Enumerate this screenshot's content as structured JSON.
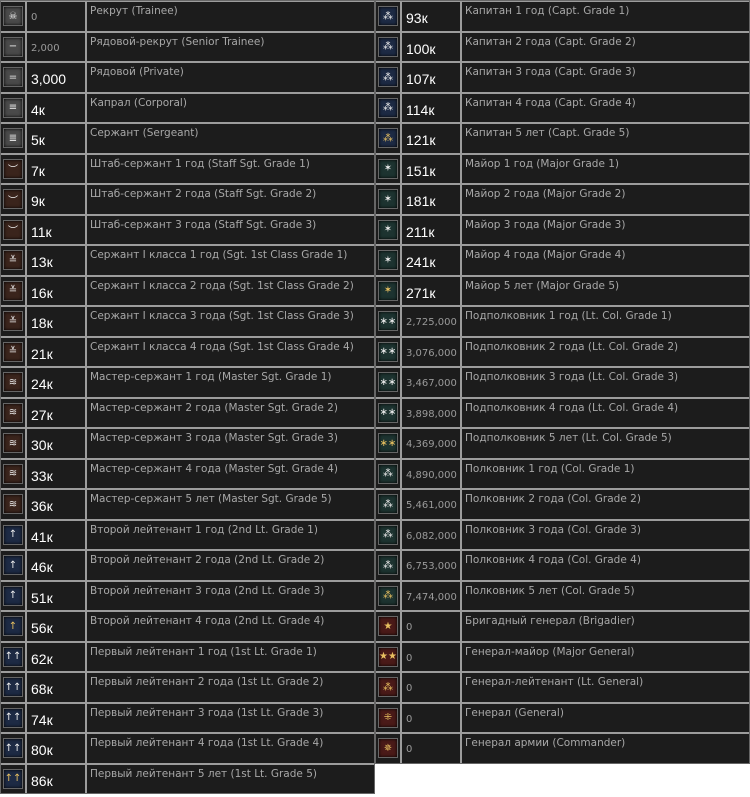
{
  "icon_colors": {
    "gray": "#4a4a4a",
    "brown": "#3a241c",
    "blue": "#1d2a44",
    "green": "#1d3330",
    "red": "#4a1a18"
  },
  "left": [
    {
      "icon": "skull-icon",
      "glyph": "☠",
      "bg": "gray",
      "value": "0",
      "style": "dim",
      "name": "Рекрут (Trainee)"
    },
    {
      "icon": "one-bar-icon",
      "glyph": "−",
      "bg": "gray",
      "value": "2,000",
      "style": "dim",
      "name": "Рядовой-рекрут (Senior Trainee)"
    },
    {
      "icon": "two-bars-icon",
      "glyph": "=",
      "bg": "gray",
      "value": "3,000",
      "style": "bright",
      "name": "Рядовой (Private)"
    },
    {
      "icon": "three-bars-icon",
      "glyph": "≡",
      "bg": "gray",
      "value": "4к",
      "style": "bright",
      "name": "Капрал (Corporal)"
    },
    {
      "icon": "four-bars-icon",
      "glyph": "≣",
      "bg": "gray",
      "value": "5к",
      "style": "bright",
      "name": "Сержант (Sergeant)"
    },
    {
      "icon": "chevron-icon",
      "glyph": "︶",
      "bg": "brown",
      "value": "7к",
      "style": "bright",
      "name": "Штаб-сержант 1 год (Staff Sgt. Grade 1)"
    },
    {
      "icon": "chevron-icon",
      "glyph": "︶",
      "bg": "brown",
      "value": "9к",
      "style": "bright",
      "name": "Штаб-сержант 2 года (Staff Sgt. Grade 2)"
    },
    {
      "icon": "chevron-icon",
      "glyph": "︶",
      "bg": "brown",
      "value": "11к",
      "style": "bright",
      "name": "Штаб-сержант 3 года (Staff Sgt. Grade 3)"
    },
    {
      "icon": "double-chevron-icon",
      "glyph": "≚",
      "bg": "brown",
      "value": "13к",
      "style": "bright",
      "name": "Сержант I класса 1 год (Sgt. 1st Class Grade 1)"
    },
    {
      "icon": "double-chevron-icon",
      "glyph": "≚",
      "bg": "brown",
      "value": "16к",
      "style": "bright",
      "name": "Сержант I класса 2 года (Sgt. 1st Class Grade 2)"
    },
    {
      "icon": "double-chevron-icon",
      "glyph": "≚",
      "bg": "brown",
      "value": "18к",
      "style": "bright",
      "name": "Сержант I класса 3 года (Sgt. 1st Class Grade 3)"
    },
    {
      "icon": "double-chevron-icon",
      "glyph": "≚",
      "bg": "brown",
      "value": "21к",
      "style": "bright",
      "name": "Сержант I класса 4 года (Sgt. 1st Class Grade 4)"
    },
    {
      "icon": "triple-chevron-icon",
      "glyph": "≋",
      "bg": "brown",
      "value": "24к",
      "style": "bright",
      "name": "Мастер-сержант 1 год (Master Sgt. Grade 1)"
    },
    {
      "icon": "triple-chevron-icon",
      "glyph": "≋",
      "bg": "brown",
      "value": "27к",
      "style": "bright",
      "name": "Мастер-сержант 2 года (Master Sgt. Grade 2)"
    },
    {
      "icon": "triple-chevron-icon",
      "glyph": "≋",
      "bg": "brown",
      "value": "30к",
      "style": "bright",
      "name": "Мастер-сержант 3 года (Master Sgt. Grade 3)"
    },
    {
      "icon": "triple-chevron-icon",
      "glyph": "≋",
      "bg": "brown",
      "value": "33к",
      "style": "bright",
      "name": "Мастер-сержант 4 года (Master Sgt. Grade 4)"
    },
    {
      "icon": "triple-chevron-icon",
      "glyph": "≋",
      "bg": "brown",
      "value": "36к",
      "style": "bright",
      "name": "Мастер-сержант 5 лет (Master Sgt. Grade 5)"
    },
    {
      "icon": "single-pip-icon",
      "glyph": "↑",
      "bg": "blue",
      "value": "41к",
      "style": "bright",
      "name": "Второй лейтенант 1 год (2nd Lt. Grade 1)"
    },
    {
      "icon": "single-pip-icon",
      "glyph": "↑",
      "bg": "blue",
      "value": "46к",
      "style": "bright",
      "name": "Второй лейтенант 2 года (2nd Lt. Grade 2)"
    },
    {
      "icon": "single-pip-icon",
      "glyph": "↑",
      "bg": "blue",
      "value": "51к",
      "style": "bright",
      "name": "Второй лейтенант 3 года (2nd Lt. Grade 3)"
    },
    {
      "icon": "single-pip-gold-icon",
      "glyph": "↑",
      "bg": "blue",
      "value": "56к",
      "style": "bright",
      "name": "Второй лейтенант 4 года (2nd Lt. Grade 4)"
    },
    {
      "icon": "double-pip-icon",
      "glyph": "↑↑",
      "bg": "blue",
      "value": "62к",
      "style": "bright",
      "name": "Первый лейтенант 1 год (1st Lt. Grade 1)"
    },
    {
      "icon": "double-pip-icon",
      "glyph": "↑↑",
      "bg": "blue",
      "value": "68к",
      "style": "bright",
      "name": "Первый лейтенант 2 года (1st Lt. Grade 2)"
    },
    {
      "icon": "double-pip-icon",
      "glyph": "↑↑",
      "bg": "blue",
      "value": "74к",
      "style": "bright",
      "name": "Первый лейтенант 3 года (1st Lt. Grade 3)"
    },
    {
      "icon": "double-pip-icon",
      "glyph": "↑↑",
      "bg": "blue",
      "value": "80к",
      "style": "bright",
      "name": "Первый лейтенант 4 года (1st Lt. Grade 4)"
    },
    {
      "icon": "double-pip-gold-icon",
      "glyph": "↑↑",
      "bg": "blue",
      "value": "86к",
      "style": "bright",
      "name": "Первый лейтенант 5 лет (1st Lt. Grade 5)"
    }
  ],
  "right": [
    {
      "icon": "captain-pips-icon",
      "glyph": "⁂",
      "bg": "blue",
      "value": "93к",
      "style": "bright",
      "name": "Капитан 1 год (Capt. Grade 1)"
    },
    {
      "icon": "captain-pips-icon",
      "glyph": "⁂",
      "bg": "blue",
      "value": "100к",
      "style": "bright",
      "name": "Капитан 2 года (Capt. Grade 2)"
    },
    {
      "icon": "captain-pips-icon",
      "glyph": "⁂",
      "bg": "blue",
      "value": "107к",
      "style": "bright",
      "name": "Капитан 3 года (Capt. Grade 3)"
    },
    {
      "icon": "captain-pips-icon",
      "glyph": "⁂",
      "bg": "blue",
      "value": "114к",
      "style": "bright",
      "name": "Капитан 4 года (Capt. Grade 4)"
    },
    {
      "icon": "captain-pips-gold-icon",
      "glyph": "⁂",
      "bg": "blue",
      "value": "121к",
      "style": "bright",
      "name": "Капитан 5 лет (Capt. Grade 5)"
    },
    {
      "icon": "major-star-icon",
      "glyph": "✶",
      "bg": "green",
      "value": "151к",
      "style": "bright",
      "name": "Майор 1 год (Major Grade 1)"
    },
    {
      "icon": "major-star-icon",
      "glyph": "✶",
      "bg": "green",
      "value": "181к",
      "style": "bright",
      "name": "Майор 2 года (Major Grade 2)"
    },
    {
      "icon": "major-star-icon",
      "glyph": "✶",
      "bg": "green",
      "value": "211к",
      "style": "bright",
      "name": "Майор 3 года (Major Grade 3)"
    },
    {
      "icon": "major-star-icon",
      "glyph": "✶",
      "bg": "green",
      "value": "241к",
      "style": "bright",
      "name": "Майор 4 года (Major Grade 4)"
    },
    {
      "icon": "major-star-gold-icon",
      "glyph": "✶",
      "bg": "green",
      "value": "271к",
      "style": "bright",
      "name": "Майор 5 лет (Major Grade 5)"
    },
    {
      "icon": "two-stars-icon",
      "glyph": "∗∗",
      "bg": "green",
      "value": "2,725,000",
      "style": "dim",
      "name": "Подполковник 1 год (Lt. Col. Grade 1)"
    },
    {
      "icon": "two-stars-icon",
      "glyph": "∗∗",
      "bg": "green",
      "value": "3,076,000",
      "style": "dim",
      "name": "Подполковник 2 года (Lt. Col. Grade 2)"
    },
    {
      "icon": "two-stars-icon",
      "glyph": "∗∗",
      "bg": "green",
      "value": "3,467,000",
      "style": "dim",
      "name": "Подполковник 3 года (Lt. Col. Grade 3)"
    },
    {
      "icon": "two-stars-icon",
      "glyph": "∗∗",
      "bg": "green",
      "value": "3,898,000",
      "style": "dim",
      "name": "Подполковник 4 года (Lt. Col. Grade 4)"
    },
    {
      "icon": "two-stars-gold-icon",
      "glyph": "∗∗",
      "bg": "green",
      "value": "4,369,000",
      "style": "dim",
      "name": "Подполковник 5 лет (Lt. Col. Grade 5)"
    },
    {
      "icon": "three-stars-icon",
      "glyph": "⁂",
      "bg": "green",
      "value": "4,890,000",
      "style": "dim",
      "name": "Полковник 1 год (Col. Grade 1)"
    },
    {
      "icon": "three-stars-icon",
      "glyph": "⁂",
      "bg": "green",
      "value": "5,461,000",
      "style": "dim",
      "name": "Полковник 2 года (Col. Grade 2)"
    },
    {
      "icon": "three-stars-icon",
      "glyph": "⁂",
      "bg": "green",
      "value": "6,082,000",
      "style": "dim",
      "name": "Полковник 3 года (Col. Grade 3)"
    },
    {
      "icon": "three-stars-icon",
      "glyph": "⁂",
      "bg": "green",
      "value": "6,753,000",
      "style": "dim",
      "name": "Полковник 4 года (Col. Grade 4)"
    },
    {
      "icon": "three-stars-gold-icon",
      "glyph": "⁂",
      "bg": "green",
      "value": "7,474,000",
      "style": "dim",
      "name": "Полковник 5 лет (Col. Grade 5)"
    },
    {
      "icon": "general-one-star-icon",
      "glyph": "★",
      "bg": "red",
      "value": "0",
      "style": "dim",
      "name": "Бригадный генерал (Brigadier)"
    },
    {
      "icon": "general-two-stars-icon",
      "glyph": "★★",
      "bg": "red",
      "value": "0",
      "style": "dim",
      "name": "Генерал-майор (Major General)"
    },
    {
      "icon": "general-three-stars-icon",
      "glyph": "⁂",
      "bg": "red",
      "value": "0",
      "style": "dim",
      "name": "Генерал-лейтенант (Lt. General)"
    },
    {
      "icon": "general-four-stars-icon",
      "glyph": "⁜",
      "bg": "red",
      "value": "0",
      "style": "dim",
      "name": "Генерал (General)"
    },
    {
      "icon": "general-five-stars-icon",
      "glyph": "✵",
      "bg": "red",
      "value": "0",
      "style": "dim",
      "name": "Генерал армии (Commander)"
    }
  ]
}
